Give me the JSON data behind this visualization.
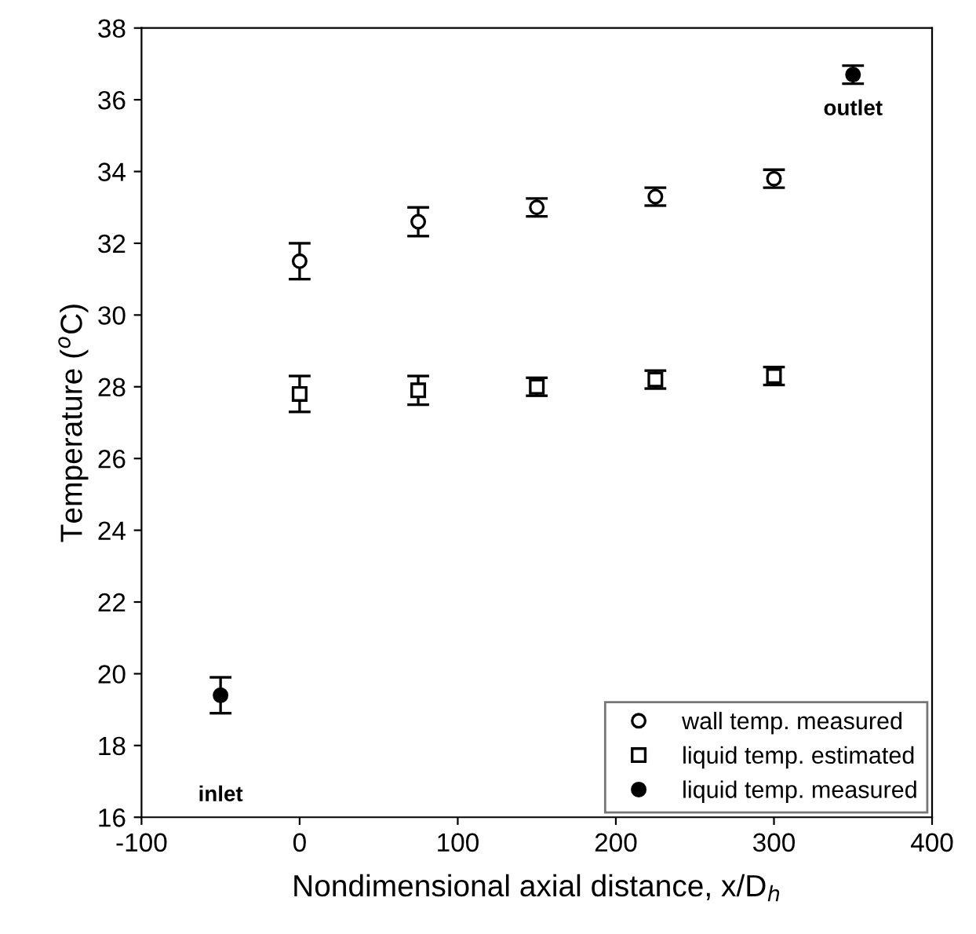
{
  "chart_data": {
    "type": "scatter",
    "xlabel": "Nondimensional axial distance, x/D$_{h}$",
    "ylabel": "Temperature ($^{o}$C)",
    "xlim": [
      -100,
      400
    ],
    "xticks": [
      -100,
      0,
      100,
      200,
      300,
      400
    ],
    "ylim": [
      16,
      38
    ],
    "yticks": [
      16,
      18,
      20,
      22,
      24,
      26,
      28,
      30,
      32,
      34,
      36,
      38
    ],
    "grid": false,
    "legend": "bottom right",
    "series": [
      {
        "name": "wall temp. measured",
        "color": "#000000",
        "marker": "circle",
        "x": [
          0,
          75,
          150,
          225,
          300
        ],
        "values": [
          31.5,
          32.6,
          33.0,
          33.3,
          33.8
        ],
        "errors": [
          0.5,
          0.4,
          0.25,
          0.25,
          0.25
        ]
      },
      {
        "name": "liquid temp. estimated",
        "color": "#000000",
        "marker": "square",
        "x": [
          0,
          75,
          150,
          225,
          300
        ],
        "values": [
          27.8,
          27.9,
          28.0,
          28.2,
          28.3
        ],
        "errors": [
          0.5,
          0.4,
          0.25,
          0.25,
          0.25
        ]
      },
      {
        "name": "liquid temp. measured",
        "color": "#000000",
        "marker": "circle",
        "x": [
          -50,
          350
        ],
        "values": [
          19.4,
          36.7
        ],
        "errors": [
          0.5,
          0.25
        ]
      }
    ],
    "annotations": [
      "inlet",
      "outlet"
    ]
  }
}
